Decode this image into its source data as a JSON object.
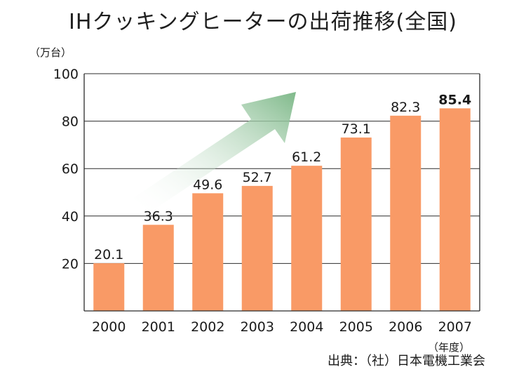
{
  "title": "IHクッキングヒーターの出荷推移(全国)",
  "source": "出典：（社）日本電機工業会",
  "colors": {
    "bar": "#f99a66",
    "highlight_label": "#ef7a1e",
    "grid": "#2b2b2b",
    "arrow_start": "#ffffff",
    "arrow_end": "#7fb98a"
  },
  "chart_data": {
    "type": "bar",
    "title": "IHクッキングヒーターの出荷推移(全国)",
    "ylabel_unit": "（万台）",
    "xlabel_unit": "（年度）",
    "categories": [
      "2000",
      "2001",
      "2002",
      "2003",
      "2004",
      "2005",
      "2006",
      "2007"
    ],
    "values": [
      20.1,
      36.3,
      49.6,
      52.7,
      61.2,
      73.1,
      82.3,
      85.4
    ],
    "value_labels": [
      "20.1",
      "36.3",
      "49.6",
      "52.7",
      "61.2",
      "73.1",
      "82.3",
      "85.4"
    ],
    "ylim": [
      0,
      100
    ],
    "yticks": [
      "20",
      "40",
      "60",
      "80",
      "100"
    ],
    "ytick_values": [
      20,
      40,
      60,
      80,
      100
    ],
    "grid": true,
    "highlight_index": 7,
    "annotation": "upward-trend-arrow"
  }
}
